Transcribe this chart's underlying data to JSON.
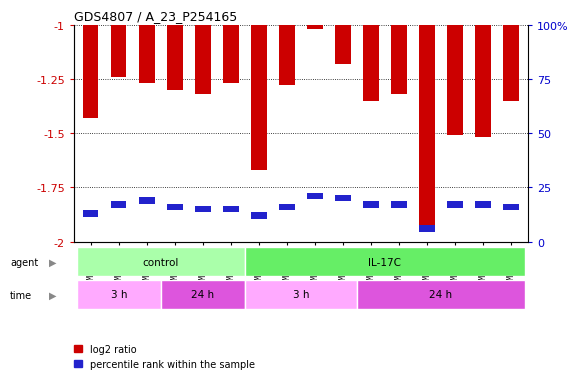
{
  "title": "GDS4807 / A_23_P254165",
  "samples": [
    "GSM808637",
    "GSM808642",
    "GSM808643",
    "GSM808634",
    "GSM808645",
    "GSM808646",
    "GSM808633",
    "GSM808638",
    "GSM808640",
    "GSM808641",
    "GSM808644",
    "GSM808635",
    "GSM808636",
    "GSM808639",
    "GSM808647",
    "GSM808648"
  ],
  "log2_ratio": [
    -1.43,
    -1.24,
    -1.27,
    -1.3,
    -1.32,
    -1.27,
    -1.67,
    -1.28,
    -1.02,
    -1.18,
    -1.35,
    -1.32,
    -1.93,
    -1.51,
    -1.52,
    -1.35
  ],
  "percentile_rank": [
    13,
    17,
    19,
    16,
    15,
    15,
    12,
    16,
    21,
    20,
    17,
    17,
    6,
    17,
    17,
    16
  ],
  "bar_color": "#cc0000",
  "blue_color": "#2222cc",
  "ylim_left": [
    -2.0,
    -1.0
  ],
  "ylim_right": [
    0,
    100
  ],
  "yticks_left": [
    -2.0,
    -1.75,
    -1.5,
    -1.25,
    -1.0
  ],
  "yticks_right": [
    0,
    25,
    50,
    75,
    100
  ],
  "ytick_labels_left": [
    "-2",
    "-1.75",
    "-1.5",
    "-1.25",
    "-1"
  ],
  "ytick_labels_right": [
    "0",
    "25",
    "50",
    "75",
    "100%"
  ],
  "agent_groups": [
    {
      "label": "control",
      "start": 0,
      "end": 6,
      "color": "#aaffaa"
    },
    {
      "label": "IL-17C",
      "start": 6,
      "end": 16,
      "color": "#66ee66"
    }
  ],
  "time_groups": [
    {
      "label": "3 h",
      "start": 0,
      "end": 3,
      "color": "#ffaaff"
    },
    {
      "label": "24 h",
      "start": 3,
      "end": 6,
      "color": "#dd55dd"
    },
    {
      "label": "3 h",
      "start": 6,
      "end": 10,
      "color": "#ffaaff"
    },
    {
      "label": "24 h",
      "start": 10,
      "end": 16,
      "color": "#dd55dd"
    }
  ],
  "legend_items": [
    {
      "label": "log2 ratio",
      "color": "#cc0000"
    },
    {
      "label": "percentile rank within the sample",
      "color": "#2222cc"
    }
  ],
  "background_color": "#ffffff",
  "plot_bg": "#ffffff",
  "grid_color": "black",
  "tick_color_left": "#cc0000",
  "tick_color_right": "#0000cc",
  "bar_width": 0.55
}
